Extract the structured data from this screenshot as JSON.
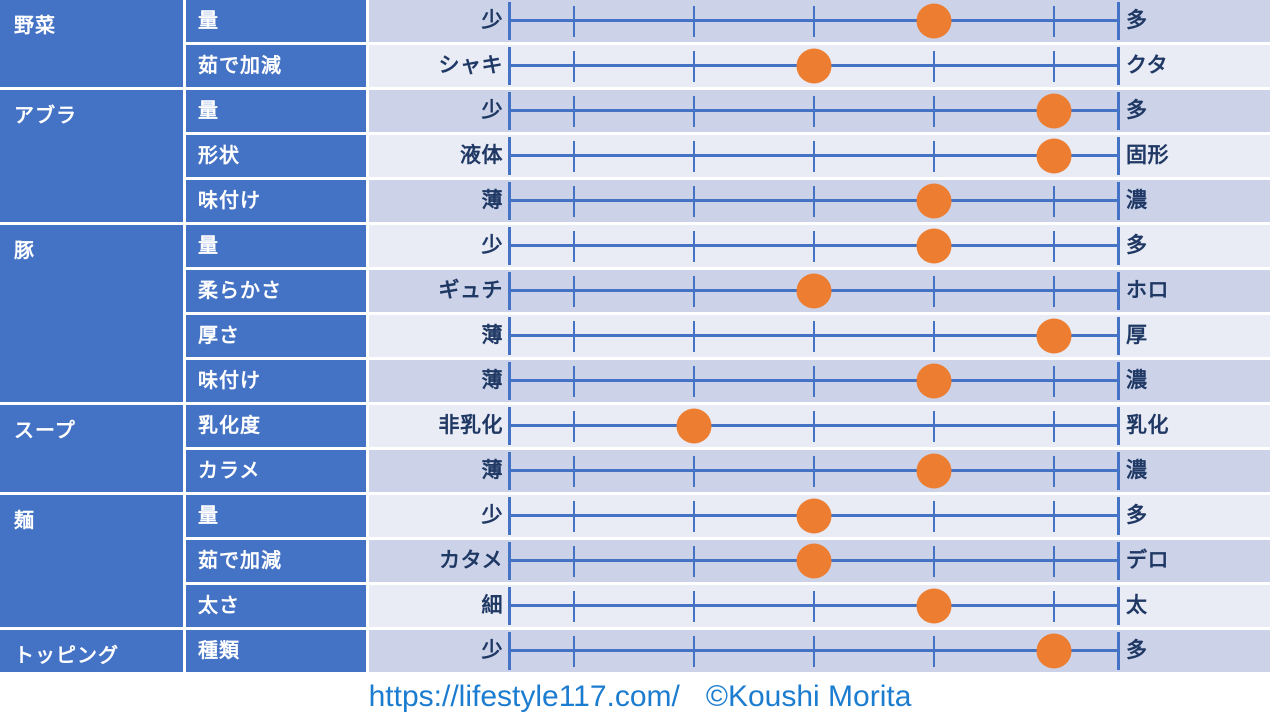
{
  "chart_data": {
    "type": "table",
    "value_scale": {
      "min": 1,
      "max": 5,
      "ticks": 5
    },
    "columns": [
      "category",
      "attribute",
      "left_label",
      "value_1_to_5",
      "right_label"
    ],
    "groups": [
      {
        "category": "野菜",
        "rows": [
          {
            "attribute": "量",
            "left": "少",
            "right": "多",
            "value": 4
          },
          {
            "attribute": "茹で加減",
            "left": "シャキ",
            "right": "クタ",
            "value": 3
          }
        ]
      },
      {
        "category": "アブラ",
        "rows": [
          {
            "attribute": "量",
            "left": "少",
            "right": "多",
            "value": 5
          },
          {
            "attribute": "形状",
            "left": "液体",
            "right": "固形",
            "value": 5
          },
          {
            "attribute": "味付け",
            "left": "薄",
            "right": "濃",
            "value": 4
          }
        ]
      },
      {
        "category": "豚",
        "rows": [
          {
            "attribute": "量",
            "left": "少",
            "right": "多",
            "value": 4
          },
          {
            "attribute": "柔らかさ",
            "left": "ギュチ",
            "right": "ホロ",
            "value": 3
          },
          {
            "attribute": "厚さ",
            "left": "薄",
            "right": "厚",
            "value": 5
          },
          {
            "attribute": "味付け",
            "left": "薄",
            "right": "濃",
            "value": 4
          }
        ]
      },
      {
        "category": "スープ",
        "rows": [
          {
            "attribute": "乳化度",
            "left": "非乳化",
            "right": "乳化",
            "value": 2
          },
          {
            "attribute": "カラメ",
            "left": "薄",
            "right": "濃",
            "value": 4
          }
        ]
      },
      {
        "category": "麺",
        "rows": [
          {
            "attribute": "量",
            "left": "少",
            "right": "多",
            "value": 3
          },
          {
            "attribute": "茹で加減",
            "left": "カタメ",
            "right": "デロ",
            "value": 3
          },
          {
            "attribute": "太さ",
            "left": "細",
            "right": "太",
            "value": 4
          }
        ]
      },
      {
        "category": "トッピング",
        "rows": [
          {
            "attribute": "種類",
            "left": "少",
            "right": "多",
            "value": 5
          }
        ]
      }
    ]
  },
  "colors": {
    "header_blue": "#4472C4",
    "row_dark": "#CCD3E9",
    "row_light": "#E9EBF5",
    "label_navy": "#1F3864",
    "axis_blue": "#4472C4",
    "dot_orange": "#ED7D31",
    "footer_blue": "#1B7CD0"
  },
  "footer": {
    "url": "https://lifestyle117.com/",
    "copyright": "©Koushi Morita"
  }
}
